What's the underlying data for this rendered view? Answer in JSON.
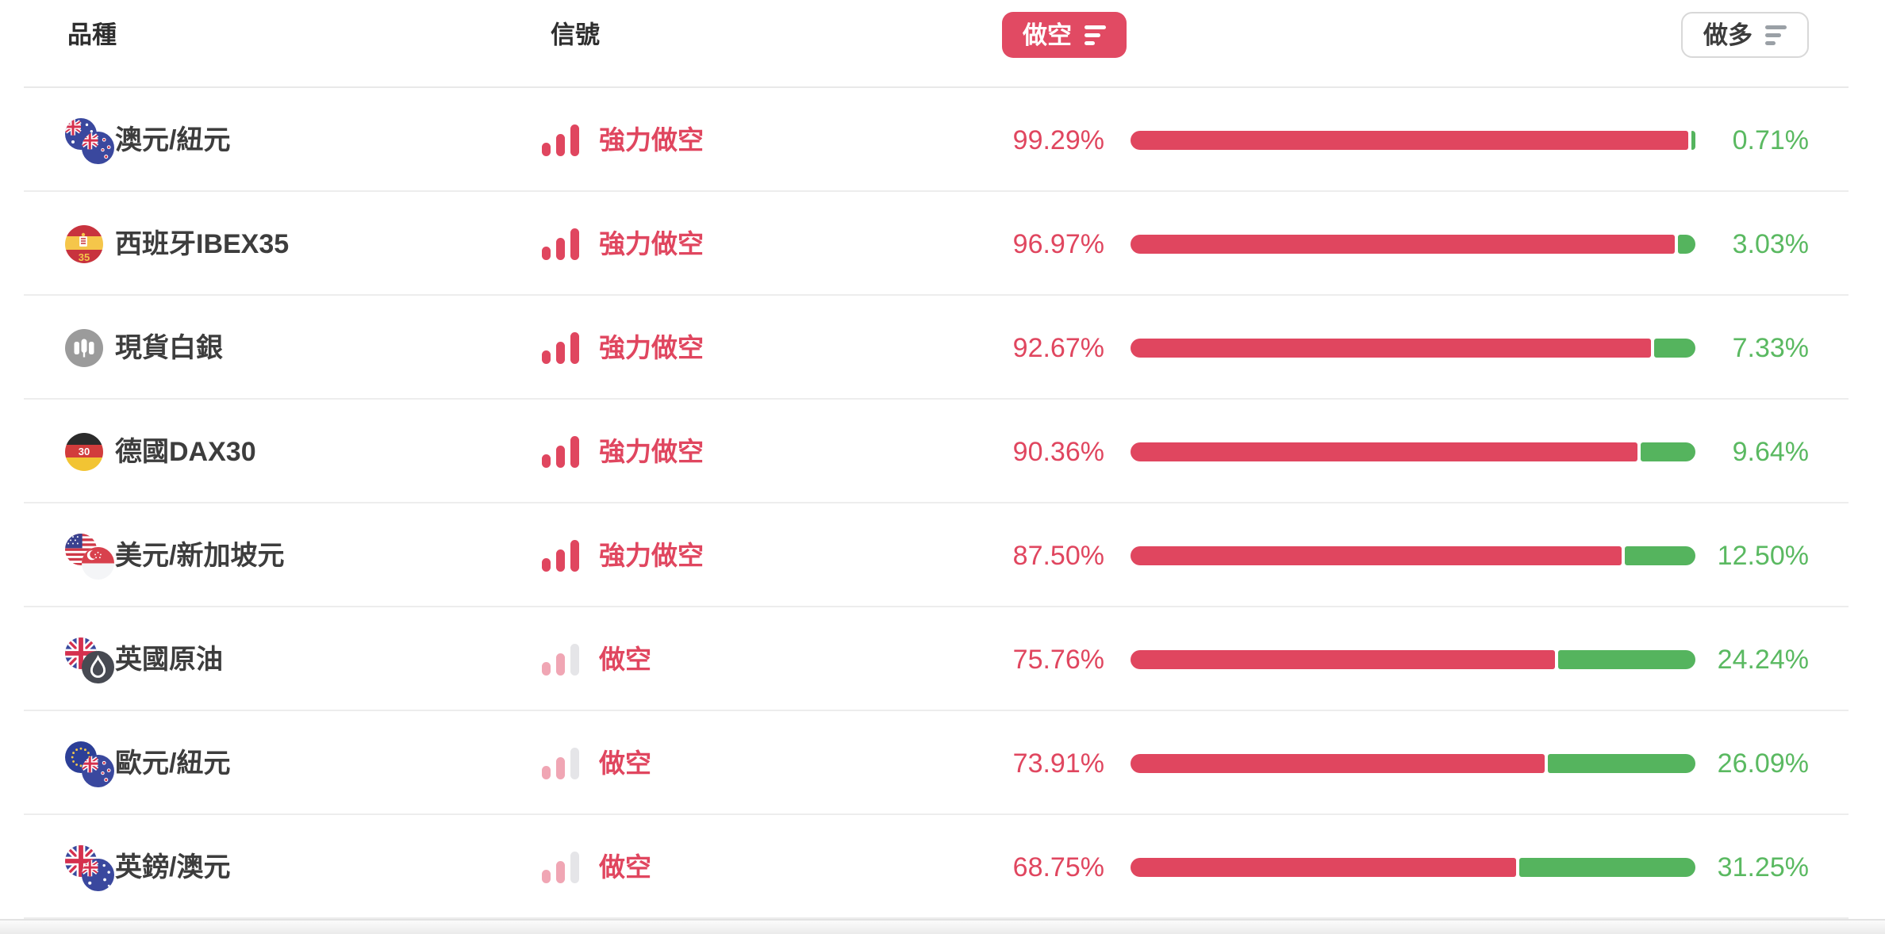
{
  "header": {
    "instrument_column": "品種",
    "signal_column": "信號",
    "short_sort_button": "做空",
    "long_sort_button": "做多",
    "short_sort_icon": "sort-descending-icon",
    "long_sort_icon": "sort-descending-icon"
  },
  "colors": {
    "short_red": "#e0465f",
    "long_green": "#55b45e",
    "long_green_text": "#5ab961",
    "signal_weak_pink": "#f0a6b4",
    "signal_weak_gray": "#e5e5e8"
  },
  "rows": [
    {
      "name": "澳元/紐元",
      "icons": [
        "flag-australia",
        "flag-new-zealand"
      ],
      "signal_strength": "strong_short",
      "signal_label": "強力做空",
      "short_pct": "99.29%",
      "long_pct": "0.71%",
      "short_value": 99.29,
      "long_value": 0.71
    },
    {
      "name": "西班牙IBEX35",
      "icons": [
        "flag-spain-ibex35"
      ],
      "signal_strength": "strong_short",
      "signal_label": "強力做空",
      "short_pct": "96.97%",
      "long_pct": "3.03%",
      "short_value": 96.97,
      "long_value": 3.03
    },
    {
      "name": "現貨白銀",
      "icons": [
        "spot-silver"
      ],
      "signal_strength": "strong_short",
      "signal_label": "強力做空",
      "short_pct": "92.67%",
      "long_pct": "7.33%",
      "short_value": 92.67,
      "long_value": 7.33
    },
    {
      "name": "德國DAX30",
      "icons": [
        "flag-germany-dax30"
      ],
      "signal_strength": "strong_short",
      "signal_label": "強力做空",
      "short_pct": "90.36%",
      "long_pct": "9.64%",
      "short_value": 90.36,
      "long_value": 9.64
    },
    {
      "name": "美元/新加坡元",
      "icons": [
        "flag-usa",
        "flag-singapore"
      ],
      "signal_strength": "strong_short",
      "signal_label": "強力做空",
      "short_pct": "87.50%",
      "long_pct": "12.50%",
      "short_value": 87.5,
      "long_value": 12.5
    },
    {
      "name": "英國原油",
      "icons": [
        "flag-uk",
        "oil-drop"
      ],
      "signal_strength": "short",
      "signal_label": "做空",
      "short_pct": "75.76%",
      "long_pct": "24.24%",
      "short_value": 75.76,
      "long_value": 24.24
    },
    {
      "name": "歐元/紐元",
      "icons": [
        "flag-eu",
        "flag-new-zealand"
      ],
      "signal_strength": "short",
      "signal_label": "做空",
      "short_pct": "73.91%",
      "long_pct": "26.09%",
      "short_value": 73.91,
      "long_value": 26.09
    },
    {
      "name": "英鎊/澳元",
      "icons": [
        "flag-uk",
        "flag-australia"
      ],
      "signal_strength": "short",
      "signal_label": "做空",
      "short_pct": "68.75%",
      "long_pct": "31.25%",
      "short_value": 68.75,
      "long_value": 31.25
    }
  ]
}
